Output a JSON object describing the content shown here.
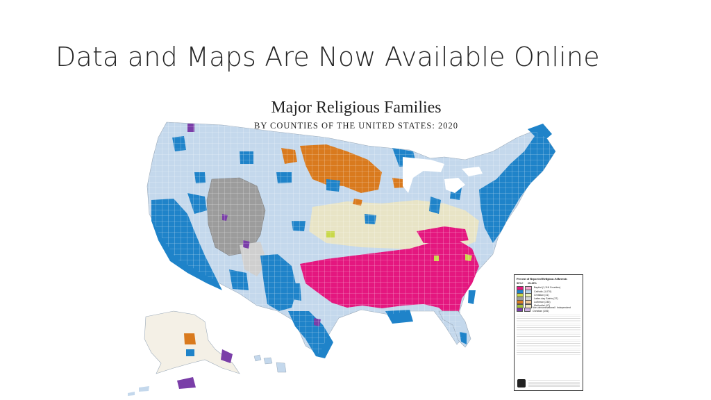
{
  "slide": {
    "title": "Data and Maps Are Now Available Online"
  },
  "map": {
    "title": "Major Religious Families",
    "subtitle": "BY COUNTIES OF THE UNITED STATES: 2020",
    "colors": {
      "baptist": "#e4177f",
      "catholic": "#1f83c9",
      "catholic_light": "#b9d3ea",
      "lds": "#9c9c9c",
      "lds_light": "#d4d4d4",
      "lutheran": "#d97a1e",
      "methodist": "#c9d84a",
      "nondenominational": "#7a3ea8",
      "other_light": "#f2e7c2"
    },
    "legend": {
      "title": "Percent of Reported Religious Adherents",
      "col_majority": "50%+",
      "col_plurality": "25-49%",
      "items": [
        {
          "label": "Baptist (1,118 Counties)",
          "key": "baptist"
        },
        {
          "label": "Catholic (1,070)",
          "key": "catholic"
        },
        {
          "label": "Christian (41)",
          "key": "methodist"
        },
        {
          "label": "Latter-day Saints (37)",
          "key": "lds"
        },
        {
          "label": "Lutheran (248)",
          "key": "lutheran"
        },
        {
          "label": "Methodist (47)",
          "key": "other_light"
        },
        {
          "label": "Non-denominational / Independent Christian (106)",
          "key": "nondenominational"
        }
      ]
    }
  }
}
